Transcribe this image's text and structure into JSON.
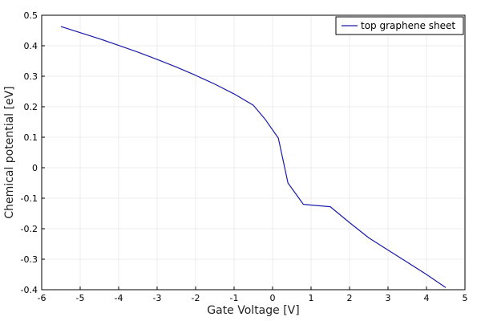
{
  "chart_data": {
    "type": "line",
    "xlabel": "Gate Voltage [V]",
    "ylabel": "Chemical potential [eV]",
    "xlim": [
      -6,
      5
    ],
    "ylim": [
      -0.4,
      0.5
    ],
    "xticks": [
      -6,
      -5,
      -4,
      -3,
      -2,
      -1,
      0,
      1,
      2,
      3,
      4,
      5
    ],
    "yticks": [
      -0.4,
      -0.3,
      -0.2,
      -0.1,
      0,
      0.1,
      0.2,
      0.3,
      0.4,
      0.5
    ],
    "xtick_labels": [
      "-6",
      "-5",
      "-4",
      "-3",
      "-2",
      "-1",
      "0",
      "1",
      "2",
      "3",
      "4",
      "5"
    ],
    "ytick_labels": [
      "-0.4",
      "-0.3",
      "-0.2",
      "-0.1",
      "0",
      "0.1",
      "0.2",
      "0.3",
      "0.4",
      "0.5"
    ],
    "grid": true,
    "legend_position": "top-right",
    "series": [
      {
        "name": "top graphene sheet",
        "color": "#1a1aa8",
        "x": [
          -5.5,
          -5.0,
          -4.5,
          -4.0,
          -3.5,
          -3.0,
          -2.5,
          -2.0,
          -1.5,
          -1.0,
          -0.5,
          -0.2,
          0.15,
          0.4,
          0.8,
          1.5,
          2.0,
          2.5,
          3.0,
          3.5,
          4.0,
          4.5
        ],
        "y": [
          0.463,
          0.443,
          0.423,
          0.401,
          0.379,
          0.355,
          0.33,
          0.303,
          0.274,
          0.242,
          0.205,
          0.16,
          0.097,
          -0.05,
          -0.12,
          -0.128,
          -0.18,
          -0.23,
          -0.27,
          -0.31,
          -0.35,
          -0.393
        ]
      }
    ]
  }
}
